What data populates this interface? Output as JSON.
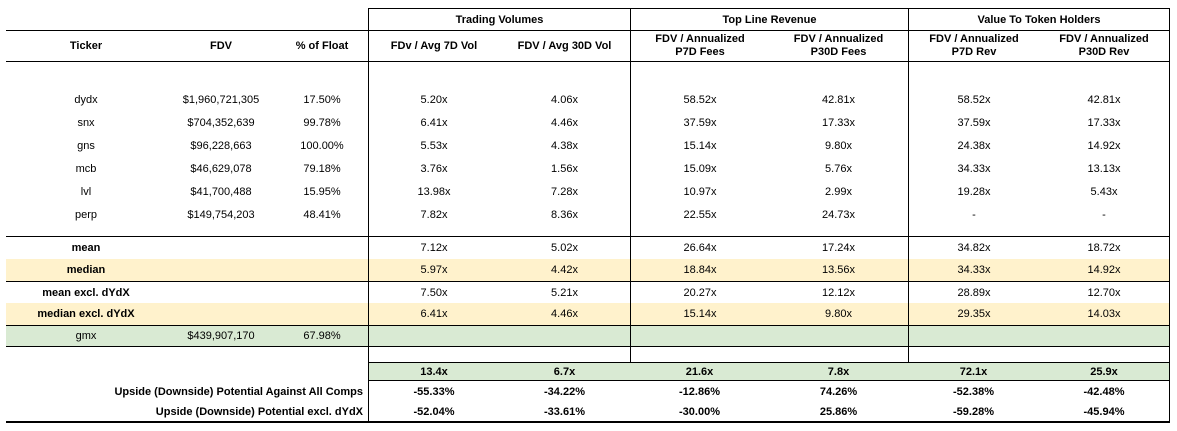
{
  "table": {
    "corner_headers": {
      "ticker": "Ticker",
      "fdv": "FDV",
      "float": "% of Float"
    },
    "groups": [
      {
        "title": "Trading Volumes",
        "subcols": [
          [
            "FDv / Avg 7D Vol"
          ],
          [
            "FDV / Avg 30D Vol"
          ]
        ]
      },
      {
        "title": "Top Line Revenue",
        "subcols": [
          [
            "FDV / Annualized",
            "P7D Fees"
          ],
          [
            "FDV / Annualized",
            "P30D Fees"
          ]
        ]
      },
      {
        "title": "Value To Token Holders",
        "subcols": [
          [
            "FDV / Annualized",
            "P7D Rev"
          ],
          [
            "FDV / Annualized",
            "P30D Rev"
          ]
        ]
      }
    ],
    "comps": [
      {
        "ticker": "dydx",
        "fdv": "$1,960,721,305",
        "float": "17.50%",
        "m": [
          "5.20x",
          "4.06x",
          "58.52x",
          "42.81x",
          "58.52x",
          "42.81x"
        ]
      },
      {
        "ticker": "snx",
        "fdv": "$704,352,639",
        "float": "99.78%",
        "m": [
          "6.41x",
          "4.46x",
          "37.59x",
          "17.33x",
          "37.59x",
          "17.33x"
        ]
      },
      {
        "ticker": "gns",
        "fdv": "$96,228,663",
        "float": "100.00%",
        "m": [
          "5.53x",
          "4.38x",
          "15.14x",
          "9.80x",
          "24.38x",
          "14.92x"
        ]
      },
      {
        "ticker": "mcb",
        "fdv": "$46,629,078",
        "float": "79.18%",
        "m": [
          "3.76x",
          "1.56x",
          "15.09x",
          "5.76x",
          "34.33x",
          "13.13x"
        ]
      },
      {
        "ticker": "lvl",
        "fdv": "$41,700,488",
        "float": "15.95%",
        "m": [
          "13.98x",
          "7.28x",
          "10.97x",
          "2.99x",
          "19.28x",
          "5.43x"
        ]
      },
      {
        "ticker": "perp",
        "fdv": "$149,754,203",
        "float": "48.41%",
        "m": [
          "7.82x",
          "8.36x",
          "22.55x",
          "24.73x",
          "-",
          "-"
        ]
      }
    ],
    "stats": [
      {
        "label": "mean",
        "m": [
          "7.12x",
          "5.02x",
          "26.64x",
          "17.24x",
          "34.82x",
          "18.72x"
        ]
      },
      {
        "label": "median",
        "m": [
          "5.97x",
          "4.42x",
          "18.84x",
          "13.56x",
          "34.33x",
          "14.92x"
        ]
      },
      {
        "label": "mean excl. dYdX",
        "m": [
          "7.50x",
          "5.21x",
          "20.27x",
          "12.12x",
          "28.89x",
          "12.70x"
        ]
      },
      {
        "label": "median excl. dYdX",
        "m": [
          "6.41x",
          "4.46x",
          "15.14x",
          "9.80x",
          "29.35x",
          "14.03x"
        ]
      }
    ],
    "subject": {
      "ticker": "gmx",
      "fdv": "$439,907,170",
      "float": "67.98%"
    },
    "implied": {
      "m": [
        "13.4x",
        "6.7x",
        "21.6x",
        "7.8x",
        "72.1x",
        "25.9x"
      ]
    },
    "upside": [
      {
        "label": "Upside (Downside) Potential Against All Comps",
        "m": [
          "-55.33%",
          "-34.22%",
          "-12.86%",
          "74.26%",
          "-52.38%",
          "-42.48%"
        ]
      },
      {
        "label": "Upside (Downside) Potential excl. dYdX",
        "m": [
          "-52.04%",
          "-33.61%",
          "-30.00%",
          "25.86%",
          "-59.28%",
          "-45.94%"
        ]
      }
    ]
  },
  "colors": {
    "highlight_yellow": "#FFF2CC",
    "highlight_green": "#D9EAD3",
    "border": "#000000",
    "text": "#000000"
  }
}
